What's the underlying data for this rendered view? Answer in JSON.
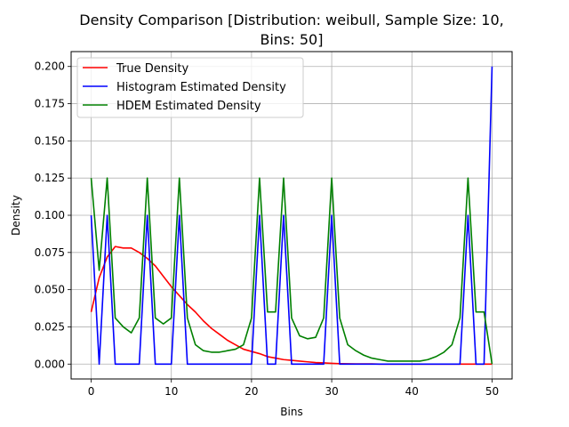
{
  "chart_data": {
    "type": "line",
    "title_line1": "Density Comparison [Distribution: weibull, Sample Size: 10,",
    "title_line2": "Bins: 50]",
    "xlabel": "Bins",
    "ylabel": "Density",
    "xlim": [
      -2.5,
      52.5
    ],
    "ylim": [
      -0.01,
      0.21
    ],
    "xticks": [
      0,
      10,
      20,
      30,
      40,
      50
    ],
    "xtick_labels": [
      "0",
      "10",
      "20",
      "30",
      "40",
      "50"
    ],
    "yticks": [
      0.0,
      0.025,
      0.05,
      0.075,
      0.1,
      0.125,
      0.15,
      0.175,
      0.2
    ],
    "ytick_labels": [
      "0.000",
      "0.025",
      "0.050",
      "0.075",
      "0.100",
      "0.125",
      "0.150",
      "0.175",
      "0.200"
    ],
    "grid": true,
    "legend_position": "top-left",
    "series": [
      {
        "name": "True Density",
        "color": "#ff0000",
        "x": [
          0,
          1,
          2,
          3,
          4,
          5,
          6,
          7,
          8,
          9,
          10,
          11,
          12,
          13,
          14,
          15,
          16,
          17,
          18,
          19,
          20,
          21,
          22,
          23,
          24,
          25,
          26,
          27,
          28,
          29,
          30,
          31,
          32,
          33,
          34,
          35,
          36,
          37,
          38,
          39,
          40,
          41,
          42,
          43,
          44,
          45,
          46,
          47,
          48,
          49,
          50
        ],
        "y": [
          0.035,
          0.058,
          0.072,
          0.079,
          0.078,
          0.078,
          0.075,
          0.071,
          0.066,
          0.059,
          0.052,
          0.046,
          0.04,
          0.035,
          0.029,
          0.024,
          0.02,
          0.016,
          0.013,
          0.01,
          0.0085,
          0.007,
          0.005,
          0.004,
          0.003,
          0.0025,
          0.002,
          0.0015,
          0.001,
          0.0008,
          0.0005,
          0.0003,
          0.0002,
          0.0001,
          0.0001,
          0.0001,
          0.0,
          0.0,
          0.0,
          0.0,
          0.0,
          0.0,
          0.0,
          0.0,
          0.0,
          0.0,
          0.0,
          0.0,
          0.0,
          0.0,
          0.0
        ]
      },
      {
        "name": "Histogram Estimated Density",
        "color": "#0000ff",
        "x": [
          0,
          1,
          2,
          3,
          4,
          5,
          6,
          7,
          8,
          9,
          10,
          11,
          12,
          13,
          14,
          15,
          16,
          17,
          18,
          19,
          20,
          21,
          22,
          23,
          24,
          25,
          26,
          27,
          28,
          29,
          30,
          31,
          32,
          33,
          34,
          35,
          36,
          37,
          38,
          39,
          40,
          41,
          42,
          43,
          44,
          45,
          46,
          47,
          48,
          49,
          50
        ],
        "y": [
          0.1,
          0.0,
          0.1,
          0.0,
          0.0,
          0.0,
          0.0,
          0.1,
          0.0,
          0.0,
          0.0,
          0.1,
          0.0,
          0.0,
          0.0,
          0.0,
          0.0,
          0.0,
          0.0,
          0.0,
          0.0,
          0.1,
          0.0,
          0.0,
          0.1,
          0.0,
          0.0,
          0.0,
          0.0,
          0.0,
          0.1,
          0.0,
          0.0,
          0.0,
          0.0,
          0.0,
          0.0,
          0.0,
          0.0,
          0.0,
          0.0,
          0.0,
          0.0,
          0.0,
          0.0,
          0.0,
          0.0,
          0.1,
          0.0,
          0.0,
          0.2
        ]
      },
      {
        "name": "HDEM Estimated Density",
        "color": "#008000",
        "x": [
          0,
          1,
          2,
          3,
          4,
          5,
          6,
          7,
          8,
          9,
          10,
          11,
          12,
          13,
          14,
          15,
          16,
          17,
          18,
          19,
          20,
          21,
          22,
          23,
          24,
          25,
          26,
          27,
          28,
          29,
          30,
          31,
          32,
          33,
          34,
          35,
          36,
          37,
          38,
          39,
          40,
          41,
          42,
          43,
          44,
          45,
          46,
          47,
          48,
          49,
          50
        ],
        "y": [
          0.125,
          0.063,
          0.125,
          0.031,
          0.025,
          0.021,
          0.031,
          0.125,
          0.031,
          0.027,
          0.031,
          0.125,
          0.031,
          0.013,
          0.009,
          0.008,
          0.008,
          0.009,
          0.01,
          0.013,
          0.031,
          0.125,
          0.035,
          0.035,
          0.125,
          0.031,
          0.019,
          0.017,
          0.018,
          0.031,
          0.125,
          0.031,
          0.013,
          0.009,
          0.006,
          0.004,
          0.003,
          0.002,
          0.002,
          0.002,
          0.002,
          0.002,
          0.003,
          0.005,
          0.008,
          0.013,
          0.031,
          0.125,
          0.035,
          0.035,
          0.0
        ]
      }
    ]
  }
}
